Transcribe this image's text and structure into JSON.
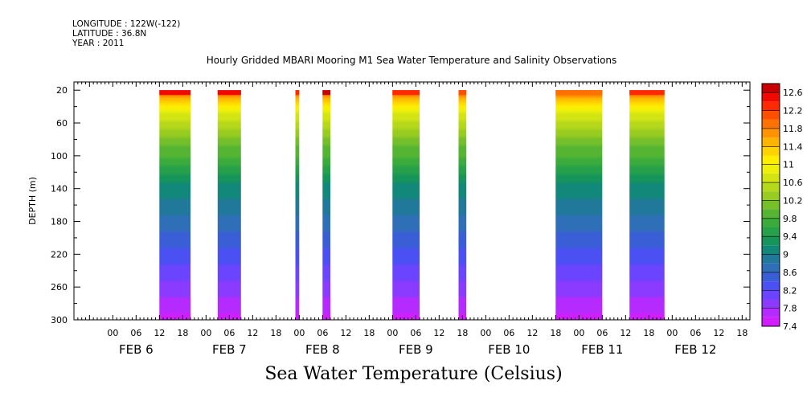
{
  "header": {
    "longitude": "LONGITUDE : 122W(-122)",
    "latitude": "LATITUDE : 36.8N",
    "year": "YEAR : 2011"
  },
  "title": "Hourly Gridded MBARI Mooring M1 Sea Water Temperature and Salinity Observations",
  "footer_label": "Sea Water Temperature (Celsius)",
  "chart_data": {
    "type": "heatmap",
    "title": "Hourly Gridded MBARI Mooring M1 Sea Water Temperature and Salinity Observations",
    "xlabel": "",
    "ylabel": "DEPTH (m)",
    "ylim": [
      300,
      10
    ],
    "y_ticks": [
      20,
      60,
      100,
      140,
      180,
      220,
      260,
      300
    ],
    "x_range_hours": [
      -10,
      164
    ],
    "x_tick_labels": [
      "00",
      "06",
      "12",
      "18",
      "00",
      "06",
      "12",
      "18",
      "00",
      "06",
      "12",
      "18",
      "00",
      "06",
      "12",
      "18",
      "00",
      "06",
      "12",
      "18",
      "00",
      "06",
      "12",
      "18",
      "00",
      "06",
      "12",
      "18"
    ],
    "day_labels": [
      "FEB 6",
      "FEB 7",
      "FEB 8",
      "FEB 9",
      "FEB 10",
      "FEB 11",
      "FEB 12"
    ],
    "colorbar_label": "Sea Water Temperature (Celsius)",
    "colorbar_ticks": [
      "12.6",
      "12.2",
      "11.8",
      "11.4",
      "11",
      "10.6",
      "10.2",
      "9.8",
      "9.4",
      "9",
      "8.6",
      "8.2",
      "7.8",
      "7.4"
    ],
    "colorbar_min": 7.4,
    "colorbar_max": 12.8,
    "levels": [
      {
        "v": 7.4,
        "c": "#d21eff"
      },
      {
        "v": 7.6,
        "c": "#b52bff"
      },
      {
        "v": 7.8,
        "c": "#8a3bff"
      },
      {
        "v": 8.0,
        "c": "#6a44ff"
      },
      {
        "v": 8.2,
        "c": "#4a50f2"
      },
      {
        "v": 8.4,
        "c": "#3a5ed6"
      },
      {
        "v": 8.6,
        "c": "#2f6fb8"
      },
      {
        "v": 8.8,
        "c": "#20799a"
      },
      {
        "v": 9.0,
        "c": "#12887a"
      },
      {
        "v": 9.2,
        "c": "#16955a"
      },
      {
        "v": 9.4,
        "c": "#26a04a"
      },
      {
        "v": 9.6,
        "c": "#3aab3c"
      },
      {
        "v": 9.8,
        "c": "#55b532"
      },
      {
        "v": 10.0,
        "c": "#74bf2a"
      },
      {
        "v": 10.2,
        "c": "#98cc20"
      },
      {
        "v": 10.4,
        "c": "#b6d81b"
      },
      {
        "v": 10.6,
        "c": "#d3e413"
      },
      {
        "v": 10.8,
        "c": "#eef00a"
      },
      {
        "v": 11.0,
        "c": "#ffee00"
      },
      {
        "v": 11.2,
        "c": "#ffd200"
      },
      {
        "v": 11.4,
        "c": "#ffb400"
      },
      {
        "v": 11.6,
        "c": "#ff9300"
      },
      {
        "v": 11.8,
        "c": "#ff7200"
      },
      {
        "v": 12.0,
        "c": "#ff4f00"
      },
      {
        "v": 12.2,
        "c": "#ff2a00"
      },
      {
        "v": 12.4,
        "c": "#f00a00"
      },
      {
        "v": 12.6,
        "c": "#c80000"
      }
    ],
    "profile": [
      {
        "depth": 20,
        "temp": 12.4
      },
      {
        "depth": 30,
        "temp": 11.5
      },
      {
        "depth": 40,
        "temp": 11.0
      },
      {
        "depth": 60,
        "temp": 10.5
      },
      {
        "depth": 80,
        "temp": 10.1
      },
      {
        "depth": 100,
        "temp": 9.8
      },
      {
        "depth": 120,
        "temp": 9.4
      },
      {
        "depth": 140,
        "temp": 9.1
      },
      {
        "depth": 160,
        "temp": 8.9
      },
      {
        "depth": 180,
        "temp": 8.7
      },
      {
        "depth": 200,
        "temp": 8.5
      },
      {
        "depth": 220,
        "temp": 8.3
      },
      {
        "depth": 240,
        "temp": 8.1
      },
      {
        "depth": 260,
        "temp": 7.9
      },
      {
        "depth": 280,
        "temp": 7.7
      },
      {
        "depth": 300,
        "temp": 7.5
      }
    ],
    "data_segments": [
      {
        "start_hour": 12,
        "end_hour": 20,
        "surface_temp": 12.5
      },
      {
        "start_hour": 27,
        "end_hour": 33,
        "surface_temp": 12.5
      },
      {
        "start_hour": 47,
        "end_hour": 48,
        "surface_temp": 12.2
      },
      {
        "start_hour": 54,
        "end_hour": 56,
        "surface_temp": 12.6
      },
      {
        "start_hour": 72,
        "end_hour": 79,
        "surface_temp": 12.3
      },
      {
        "start_hour": 89,
        "end_hour": 91,
        "surface_temp": 12.0
      },
      {
        "start_hour": 114,
        "end_hour": 126,
        "surface_temp": 11.8
      },
      {
        "start_hour": 133,
        "end_hour": 142,
        "surface_temp": 12.2
      }
    ]
  }
}
